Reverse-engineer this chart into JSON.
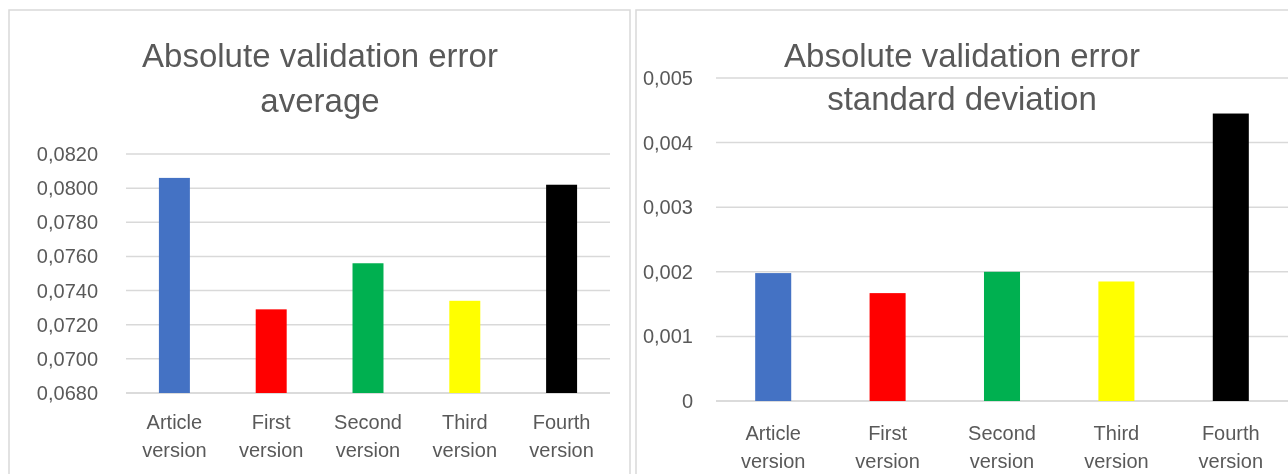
{
  "chart_data": [
    {
      "type": "bar",
      "title": "Absolute validation error average",
      "categories": [
        "Article version",
        "First version",
        "Second version",
        "Third version",
        "Fourth version"
      ],
      "values": [
        0.0806,
        0.0729,
        0.0756,
        0.0734,
        0.0802
      ],
      "colors": [
        "#4472c4",
        "#ff0000",
        "#00b050",
        "#ffff00",
        "#000000"
      ],
      "ylim": [
        0.068,
        0.082
      ],
      "yticks": [
        {
          "value": 0.068,
          "label": "0,0680"
        },
        {
          "value": 0.07,
          "label": "0,0700"
        },
        {
          "value": 0.072,
          "label": "0,0720"
        },
        {
          "value": 0.074,
          "label": "0,0740"
        },
        {
          "value": 0.076,
          "label": "0,0760"
        },
        {
          "value": 0.078,
          "label": "0,0780"
        },
        {
          "value": 0.08,
          "label": "0,0800"
        },
        {
          "value": 0.082,
          "label": "0,0820"
        }
      ],
      "grid": "y"
    },
    {
      "type": "bar",
      "title": "Absolute validation error standard deviation",
      "categories": [
        "Article version",
        "First version",
        "Second version",
        "Third version",
        "Fourth version"
      ],
      "values": [
        0.00198,
        0.00167,
        0.002,
        0.00185,
        0.00445
      ],
      "colors": [
        "#4472c4",
        "#ff0000",
        "#00b050",
        "#ffff00",
        "#000000"
      ],
      "ylim": [
        0,
        0.005
      ],
      "yticks": [
        0,
        {
          "value": 0.001,
          "label": "0,001"
        },
        {
          "value": 0.002,
          "label": "0,002"
        },
        {
          "value": 0.003,
          "label": "0,003"
        },
        {
          "value": 0.004,
          "label": "0,004"
        },
        {
          "value": 0.005,
          "label": "0,005"
        }
      ],
      "grid": "y"
    }
  ]
}
